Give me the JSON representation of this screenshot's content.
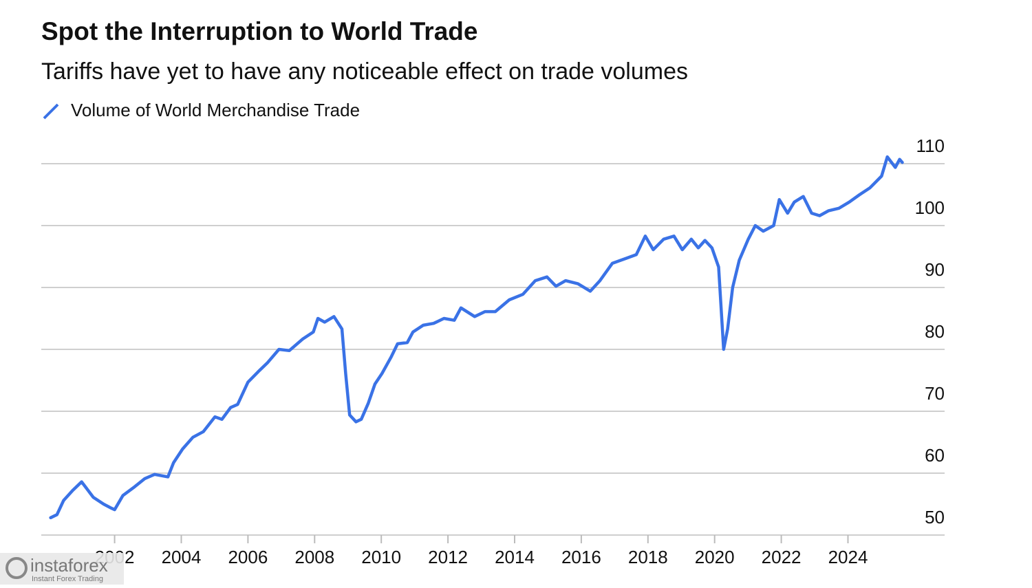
{
  "chart_data": {
    "type": "line",
    "title": "Spot the Interruption to World Trade",
    "subtitle": "Tariffs have yet to have any noticeable effect on trade volumes",
    "x": [
      2000.08,
      2000.27,
      2000.47,
      2000.74,
      2001.01,
      2001.36,
      2001.67,
      2001.88,
      2002.0,
      2002.25,
      2002.6,
      2002.9,
      2003.2,
      2003.6,
      2003.77,
      2004.04,
      2004.35,
      2004.66,
      2005.01,
      2005.22,
      2005.48,
      2005.69,
      2006.0,
      2006.31,
      2006.58,
      2006.93,
      2007.24,
      2007.65,
      2007.96,
      2008.1,
      2008.3,
      2008.58,
      2008.82,
      2008.93,
      2009.05,
      2009.24,
      2009.4,
      2009.61,
      2009.81,
      2010.02,
      2010.29,
      2010.49,
      2010.78,
      2010.95,
      2011.26,
      2011.57,
      2011.88,
      2012.19,
      2012.39,
      2012.8,
      2013.11,
      2013.42,
      2013.84,
      2014.25,
      2014.62,
      2014.97,
      2015.24,
      2015.53,
      2015.9,
      2016.27,
      2016.56,
      2016.93,
      2017.34,
      2017.65,
      2017.92,
      2018.16,
      2018.47,
      2018.78,
      2019.03,
      2019.3,
      2019.51,
      2019.71,
      2019.92,
      2020.12,
      2020.27,
      2020.39,
      2020.54,
      2020.74,
      2021.01,
      2021.22,
      2021.46,
      2021.77,
      2021.94,
      2022.19,
      2022.39,
      2022.66,
      2022.91,
      2023.15,
      2023.42,
      2023.73,
      2024.04,
      2024.35,
      2024.66,
      2025.01,
      2025.18,
      2025.42,
      2025.55,
      2025.63
    ],
    "series": [
      {
        "name": "Volume of World Merchandise Trade",
        "color": "#3a72e6",
        "values": [
          52.8,
          53.3,
          55.6,
          57.2,
          58.6,
          56.1,
          55.0,
          54.4,
          54.1,
          56.4,
          57.8,
          59.1,
          59.8,
          59.4,
          61.7,
          63.9,
          65.8,
          66.7,
          69.1,
          68.7,
          70.6,
          71.1,
          74.7,
          76.4,
          77.8,
          80.0,
          79.8,
          81.7,
          82.8,
          85.0,
          84.4,
          85.3,
          83.3,
          76.1,
          69.4,
          68.3,
          68.7,
          71.3,
          74.4,
          76.1,
          78.7,
          80.9,
          81.1,
          82.8,
          83.9,
          84.2,
          85.0,
          84.7,
          86.7,
          85.3,
          86.1,
          86.1,
          88.0,
          88.9,
          91.1,
          91.7,
          90.2,
          91.1,
          90.6,
          89.4,
          91.1,
          93.9,
          94.7,
          95.3,
          98.3,
          96.1,
          97.8,
          98.3,
          96.1,
          97.8,
          96.4,
          97.6,
          96.4,
          93.3,
          80.0,
          83.3,
          90.0,
          94.4,
          97.8,
          100.0,
          99.1,
          100.0,
          104.2,
          102.0,
          103.8,
          104.7,
          102.0,
          101.6,
          102.4,
          102.8,
          103.8,
          105.0,
          106.1,
          108.0,
          111.1,
          109.4,
          110.7,
          110.2
        ]
      }
    ],
    "xlim": [
      1999.8,
      2026.9
    ],
    "xticks": [
      2002,
      2004,
      2006,
      2008,
      2010,
      2012,
      2014,
      2016,
      2018,
      2020,
      2022,
      2024
    ],
    "ylim": [
      50,
      114
    ],
    "yticks": [
      50,
      60,
      70,
      80,
      90,
      100,
      110
    ],
    "grid": true
  },
  "watermark": {
    "brand": "instaforex",
    "tagline": "Instant Forex Trading"
  }
}
